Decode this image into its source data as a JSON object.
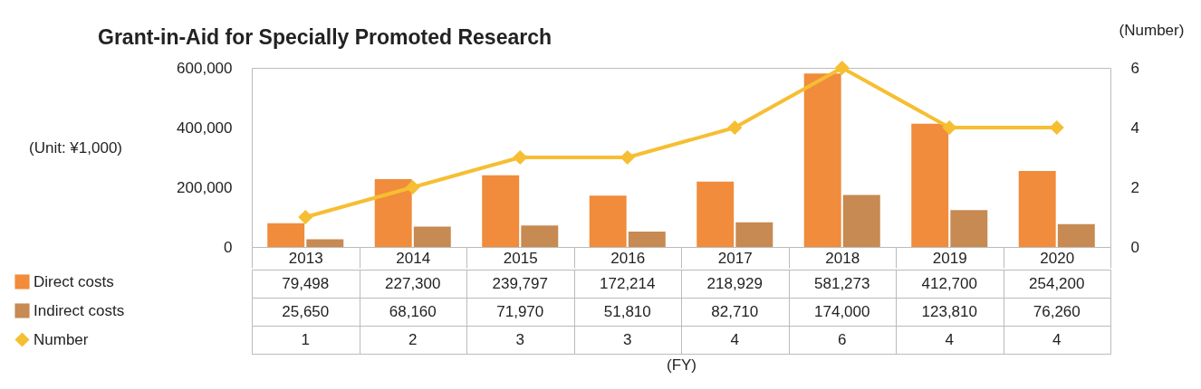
{
  "chart_data": {
    "type": "bar",
    "title": "Grant-in-Aid for Specially Promoted Research",
    "annotations": [
      "(FY)"
    ],
    "ylabel": "(Unit: ¥1,000)",
    "y2label": "(Number)",
    "categories": [
      "2013",
      "2014",
      "2015",
      "2016",
      "2017",
      "2018",
      "2019",
      "2020"
    ],
    "series": [
      {
        "name": "Direct costs",
        "type": "bar",
        "color": "#f08c3b",
        "values": [
          79498,
          227300,
          239797,
          172214,
          218929,
          581273,
          412700,
          254200
        ],
        "value_labels": [
          "79,498",
          "227,300",
          "239,797",
          "172,214",
          "218,929",
          "581,273",
          "412,700",
          "254,200"
        ]
      },
      {
        "name": "Indirect costs",
        "type": "bar",
        "color": "#c68a52",
        "values": [
          25650,
          68160,
          71970,
          51810,
          82710,
          174000,
          123810,
          76260
        ],
        "value_labels": [
          "25,650",
          "68,160",
          "71,970",
          "51,810",
          "82,710",
          "174,000",
          "123,810",
          "76,260"
        ]
      },
      {
        "name": "Number",
        "type": "line",
        "axis": "y2",
        "color": "#f6be32",
        "marker": "diamond",
        "values": [
          1,
          2,
          3,
          3,
          4,
          6,
          4,
          4
        ],
        "value_labels": [
          "1",
          "2",
          "3",
          "3",
          "4",
          "6",
          "4",
          "4"
        ]
      }
    ],
    "ylim": [
      0,
      600000
    ],
    "yticks": [
      {
        "value": 0,
        "label": "0"
      },
      {
        "value": 200000,
        "label": "200,000"
      },
      {
        "value": 400000,
        "label": "400,000"
      },
      {
        "value": 600000,
        "label": "600,000"
      }
    ],
    "y2lim": [
      0,
      6
    ],
    "y2ticks": [
      0,
      2,
      4,
      6
    ],
    "legend": "bottom left",
    "grid": false
  }
}
